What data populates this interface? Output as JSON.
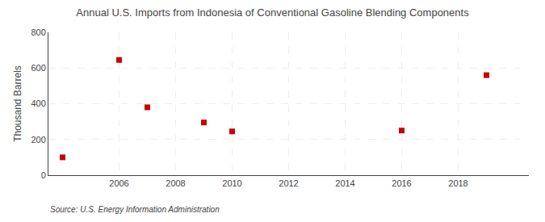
{
  "chart_data": {
    "type": "scatter",
    "title": "Annual U.S. Imports from Indonesia of Conventional Gasoline Blending Components",
    "ylabel": "Thousand Barrels",
    "annotations": [
      "Source: U.S. Energy Information Administration"
    ],
    "x": [
      2004,
      2006,
      2007,
      2009,
      2010,
      2016,
      2019
    ],
    "values": [
      100,
      645,
      380,
      295,
      245,
      250,
      560
    ],
    "color": "#cc0000",
    "marker": "square",
    "xlim": [
      2003.5,
      2020.5
    ],
    "ylim": [
      0,
      800
    ],
    "xticks": [
      2006,
      2008,
      2010,
      2012,
      2014,
      2016,
      2018
    ],
    "yticks": [
      0,
      200,
      400,
      600,
      800
    ],
    "grid": true
  }
}
